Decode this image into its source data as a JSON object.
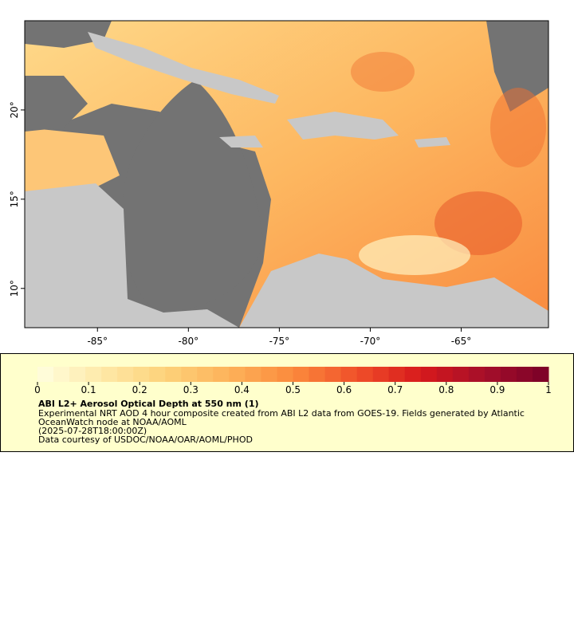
{
  "chart_data": {
    "type": "map",
    "xlim": [
      -89,
      -60.2
    ],
    "ylim": [
      7.8,
      25
    ],
    "xticks": [
      {
        "value": -85,
        "label": "-85°"
      },
      {
        "value": -80,
        "label": "-80°"
      },
      {
        "value": -75,
        "label": "-75°"
      },
      {
        "value": -70,
        "label": "-70°"
      },
      {
        "value": -65,
        "label": "-65°"
      }
    ],
    "yticks": [
      {
        "value": 10,
        "label": "10°"
      },
      {
        "value": 15,
        "label": "15°"
      },
      {
        "value": 20,
        "label": "20°"
      }
    ],
    "colorbar": {
      "lim": [
        0,
        1
      ],
      "ticks": [
        0,
        0.1,
        0.2,
        0.3,
        0.4,
        0.5,
        0.6,
        0.7,
        0.8,
        0.9,
        1
      ],
      "colors": [
        "#ffffe0",
        "#fee9a8",
        "#fdd27a",
        "#fdb25a",
        "#fb8a3c",
        "#f0502a",
        "#d7191c",
        "#a50f2a",
        "#7a0028"
      ]
    },
    "legend": {
      "title": "ABI L2+ Aerosol Optical Depth at 550 nm (1)",
      "lines": [
        "Experimental NRT AOD 4 hour composite created from ABI L2 data from GOES-19. Fields generated by Atlantic",
        "OceanWatch node at NOAA/AOML",
        "(2025-07-28T18:00:00Z)",
        "Data courtesy of USDOC/NOAA/OAR/AOML/PHOD"
      ]
    }
  }
}
